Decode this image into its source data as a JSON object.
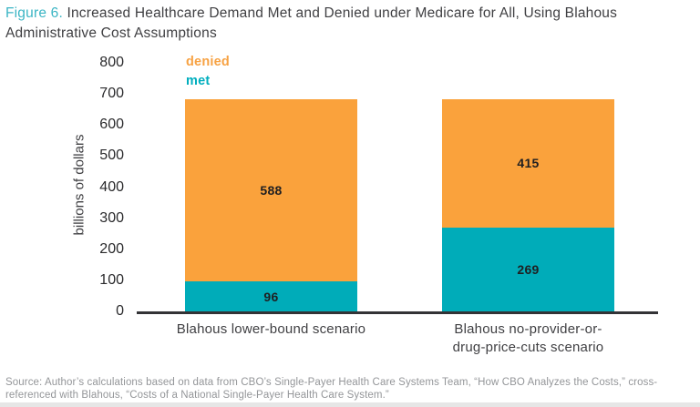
{
  "title": {
    "prefix": "Figure 6.",
    "line1": " Increased Healthcare Demand Met and Denied under Medicare for All, Using Blahous",
    "line2": "Administrative Cost Assumptions"
  },
  "source": {
    "line1": "Source: Author’s calculations based on data from CBO’s Single-Payer Health Care Systems Team, “How CBO Analyzes the Costs,” cross-",
    "line2": "referenced with Blahous, “Costs of a National Single-Payer Health Care System.”"
  },
  "colors": {
    "denied": "#faa23c",
    "met": "#00acb9",
    "title_accent": "#3bb5c4",
    "legend_denied_text": "#f7a243",
    "legend_met_text": "#00aebe",
    "axis": "#333336"
  },
  "chart_data": {
    "type": "bar",
    "stacked": true,
    "title": "Increased Healthcare Demand Met and Denied under Medicare for All, Using Blahous Administrative Cost Assumptions",
    "xlabel": "",
    "ylabel": "billions of dollars",
    "ylim": [
      0,
      800
    ],
    "yticks": [
      0,
      100,
      200,
      300,
      400,
      500,
      600,
      700,
      800
    ],
    "grid": false,
    "legend_position": "top-left-inside",
    "categories": [
      "Blahous lower-bound scenario",
      "Blahous no-provider-or-drug-price-cuts scenario"
    ],
    "category_label_lines": [
      [
        "Blahous lower-bound scenario"
      ],
      [
        "Blahous no-provider-or-",
        "drug-price-cuts scenario"
      ]
    ],
    "series": [
      {
        "name": "met",
        "color": "#00acb9",
        "values": [
          96,
          269
        ]
      },
      {
        "name": "denied",
        "color": "#faa23c",
        "values": [
          588,
          415
        ]
      }
    ],
    "legend_order": [
      "denied",
      "met"
    ]
  }
}
